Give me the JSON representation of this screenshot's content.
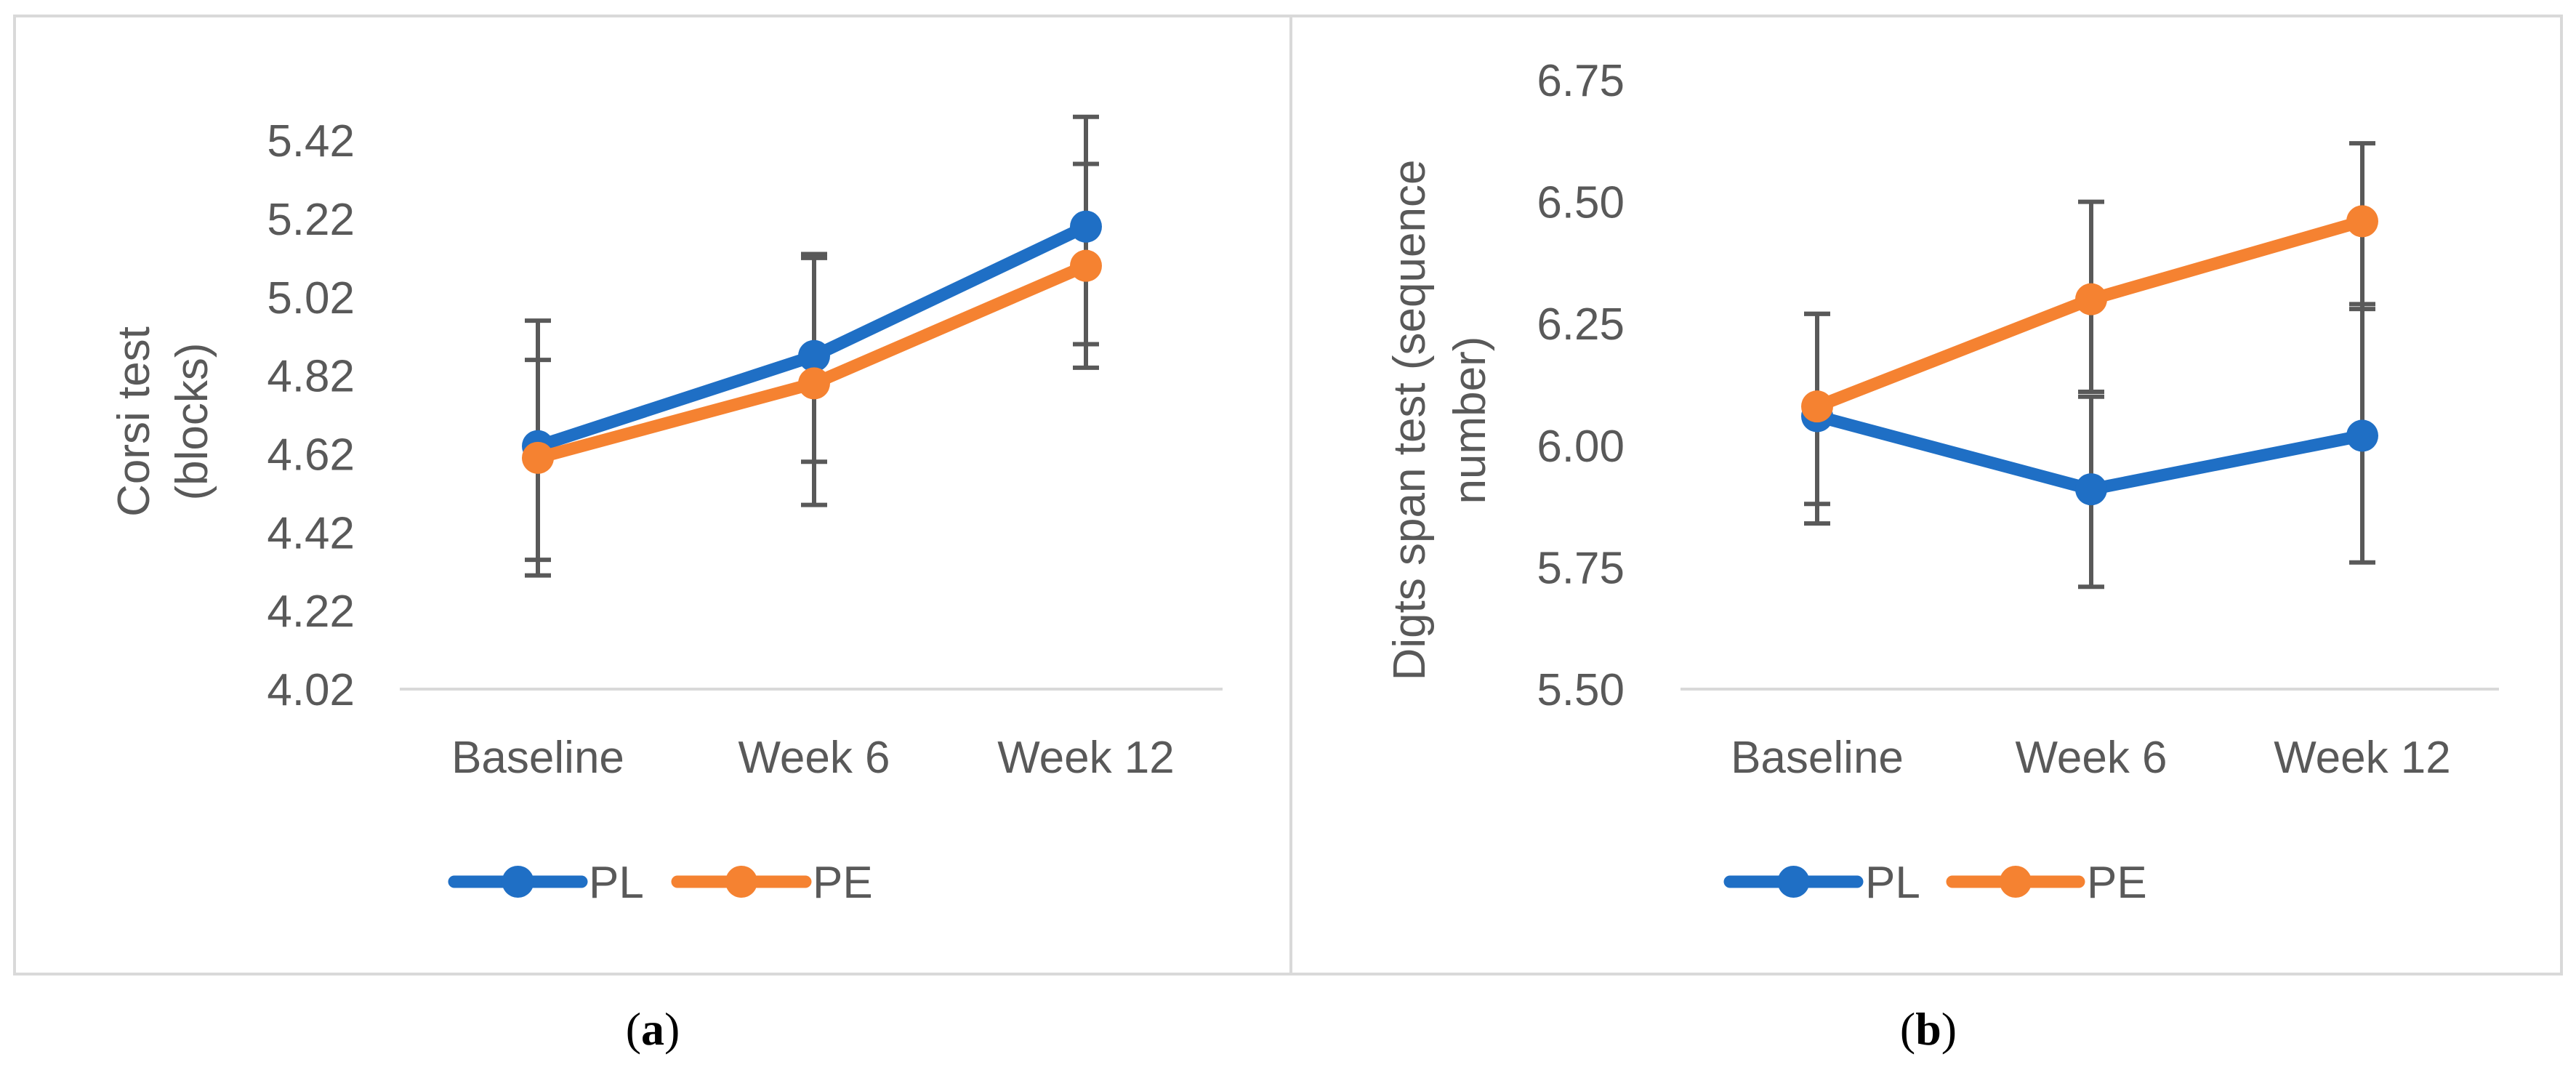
{
  "chart_data": [
    {
      "type": "line",
      "panel_label": "a",
      "xlabel": "",
      "ylabel": "Corsi test (blocks)",
      "ylabel_lines": [
        "Corsi test",
        "(blocks)"
      ],
      "categories": [
        "Baseline",
        "Week 6",
        "Week 12"
      ],
      "yticks": [
        "4.02",
        "4.22",
        "4.42",
        "4.62",
        "4.82",
        "5.02",
        "5.22",
        "5.42"
      ],
      "ylim": [
        4.02,
        5.5
      ],
      "grid": false,
      "legend": "bottom",
      "series": [
        {
          "name": "PL",
          "color": "#1f6fc5",
          "values": [
            4.64,
            4.87,
            5.2
          ],
          "err_low": [
            4.35,
            4.6,
            4.9
          ],
          "err_high": [
            4.96,
            5.13,
            5.48
          ]
        },
        {
          "name": "PE",
          "color": "#f58231",
          "values": [
            4.61,
            4.8,
            5.1
          ],
          "err_low": [
            4.31,
            4.49,
            4.84
          ],
          "err_high": [
            4.86,
            5.12,
            5.36
          ]
        }
      ]
    },
    {
      "type": "line",
      "panel_label": "b",
      "xlabel": "",
      "ylabel": "Digts span test (sequence number)",
      "ylabel_lines": [
        "Digts span test (sequence",
        "number)"
      ],
      "categories": [
        "Baseline",
        "Week 6",
        "Week 12"
      ],
      "yticks": [
        "5.50",
        "5.75",
        "6.00",
        "6.25",
        "6.50",
        "6.75"
      ],
      "ylim": [
        5.5,
        6.75
      ],
      "grid": false,
      "legend": "bottom",
      "series": [
        {
          "name": "PL",
          "color": "#1f6fc5",
          "values": [
            6.06,
            5.91,
            6.02
          ],
          "err_low": [
            5.88,
            5.71,
            5.76
          ],
          "err_high": [
            6.27,
            6.1,
            6.29
          ]
        },
        {
          "name": "PE",
          "color": "#f58231",
          "values": [
            6.08,
            6.3,
            6.46
          ],
          "err_low": [
            5.84,
            6.11,
            6.28
          ],
          "err_high": [
            6.27,
            6.5,
            6.62
          ]
        }
      ]
    }
  ]
}
